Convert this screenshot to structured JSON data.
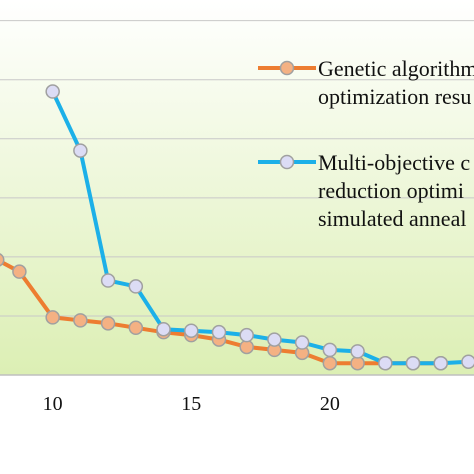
{
  "chart_data": {
    "type": "line",
    "title": "",
    "xlabel": "",
    "ylabel": "",
    "xlim": [
      8.1,
      25.2
    ],
    "ylim": [
      0,
      12.7
    ],
    "x_ticks": [
      "10",
      "15",
      "20"
    ],
    "grid": true,
    "background": "gradient-green",
    "legend_position": "top-right",
    "series": [
      {
        "label_lines": [
          "Genetic algorithm",
          "optimization resu"
        ],
        "color": "#ED7D31",
        "marker_fill": "#F4B183",
        "points": [
          [
            8,
            3.9
          ],
          [
            8.8,
            3.5
          ],
          [
            10,
            1.95
          ],
          [
            11,
            1.85
          ],
          [
            12,
            1.75
          ],
          [
            13,
            1.6
          ],
          [
            14,
            1.45
          ],
          [
            15,
            1.35
          ],
          [
            16,
            1.2
          ],
          [
            17,
            0.95
          ],
          [
            18,
            0.85
          ],
          [
            19,
            0.75
          ],
          [
            20,
            0.4
          ],
          [
            21,
            0.4
          ],
          [
            22,
            0.4
          ],
          [
            23,
            0.4
          ],
          [
            24,
            0.4
          ]
        ]
      },
      {
        "label_lines": [
          "Multi-objective c",
          "reduction optimi",
          "simulated anneal"
        ],
        "color": "#1CB0E8",
        "marker_fill": "#DCDCF5",
        "points": [
          [
            10,
            9.6
          ],
          [
            11,
            7.6
          ],
          [
            12,
            3.2
          ],
          [
            13,
            3.0
          ],
          [
            14,
            1.55
          ],
          [
            15,
            1.5
          ],
          [
            16,
            1.45
          ],
          [
            17,
            1.35
          ],
          [
            18,
            1.2
          ],
          [
            19,
            1.1
          ],
          [
            20,
            0.85
          ],
          [
            21,
            0.8
          ],
          [
            22,
            0.4
          ],
          [
            23,
            0.4
          ],
          [
            24,
            0.4
          ],
          [
            25,
            0.45
          ]
        ]
      }
    ]
  }
}
